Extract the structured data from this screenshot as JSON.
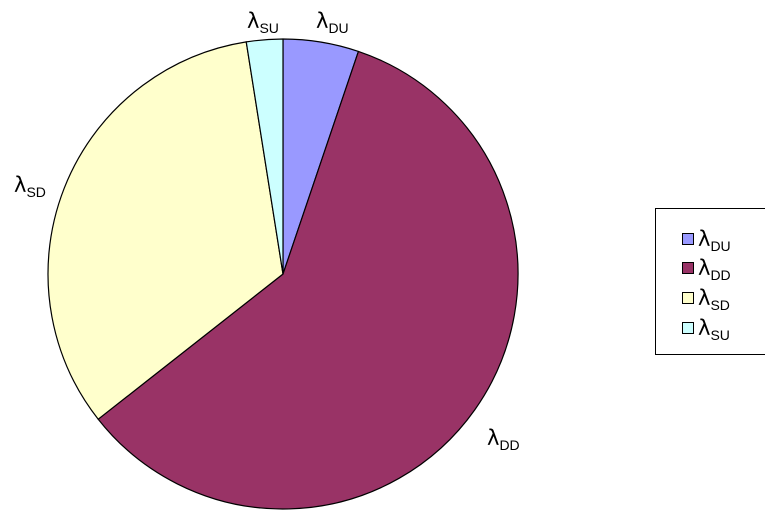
{
  "chart_data": {
    "type": "pie",
    "title": "",
    "start_angle_deg": 0,
    "direction": "clockwise",
    "slices": [
      {
        "symbol": "λ",
        "subscript": "DU",
        "value": 5.2,
        "color": "#9999ff"
      },
      {
        "symbol": "λ",
        "subscript": "DD",
        "value": 59.2,
        "color": "#993366"
      },
      {
        "symbol": "λ",
        "subscript": "SD",
        "value": 33.1,
        "color": "#ffffcc"
      },
      {
        "symbol": "λ",
        "subscript": "SU",
        "value": 2.5,
        "color": "#ccffff"
      }
    ],
    "legend": {
      "position": "right",
      "items": [
        {
          "symbol": "λ",
          "subscript": "DU",
          "color": "#9999ff"
        },
        {
          "symbol": "λ",
          "subscript": "DD",
          "color": "#993366"
        },
        {
          "symbol": "λ",
          "subscript": "SD",
          "color": "#ffffcc"
        },
        {
          "symbol": "λ",
          "subscript": "SU",
          "color": "#ccffff"
        }
      ]
    }
  }
}
